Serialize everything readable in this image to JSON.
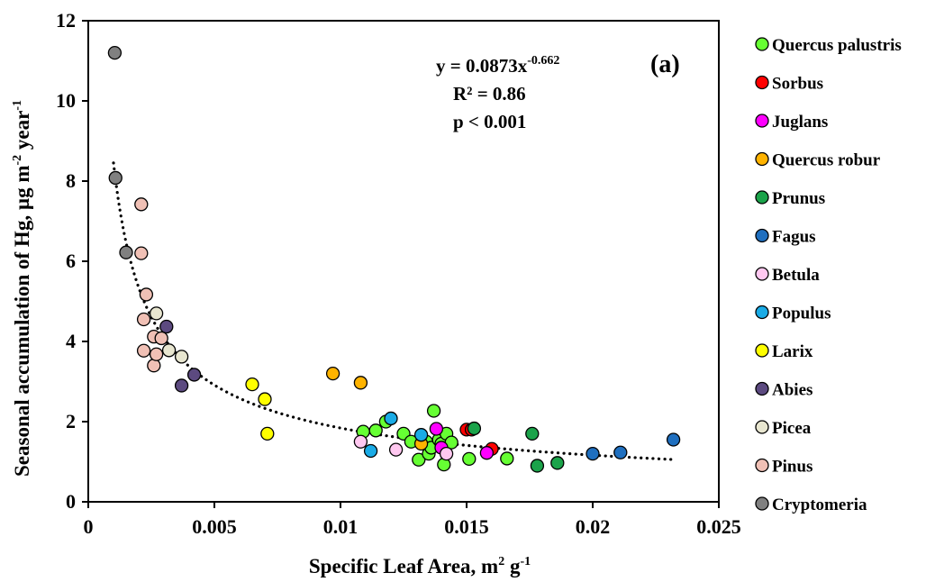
{
  "chart_data": {
    "type": "scatter",
    "title": "",
    "panel_label": "(a)",
    "xlabel": "Specific Leaf Area, m",
    "xlabel_sup": "2",
    "xlabel_mid": " g",
    "xlabel_sup2": "-1",
    "ylabel": "Seasonal accumulation of Hg, µg m",
    "ylabel_sup": "-2",
    "ylabel_mid": " year",
    "ylabel_sup2": "-1",
    "xlim": [
      0,
      0.025
    ],
    "ylim": [
      0,
      12
    ],
    "x_ticks": [
      0,
      0.005,
      0.01,
      0.015,
      0.02,
      0.025
    ],
    "x_tick_labels": [
      "0",
      "0.005",
      "0.01",
      "0.015",
      "0.02",
      "0.025"
    ],
    "y_ticks": [
      0,
      2,
      4,
      6,
      8,
      10,
      12
    ],
    "y_tick_labels": [
      "0",
      "2",
      "4",
      "6",
      "8",
      "10",
      "12"
    ],
    "grid": false,
    "legend_position": "right",
    "annotation": {
      "equation_base": "y = 0.0873x",
      "equation_exp": "-0.662",
      "r2": "R² = 0.86",
      "p": "p < 0.001"
    },
    "trendline": {
      "type": "power",
      "a": 0.0873,
      "b": -0.662,
      "x_range": [
        0.001,
        0.0232
      ],
      "style": "dotted"
    },
    "series": [
      {
        "name": "Quercus palustris",
        "color": "#66ff33",
        "points": [
          [
            0.0109,
            1.75
          ],
          [
            0.0114,
            1.78
          ],
          [
            0.0118,
            2.0
          ],
          [
            0.0125,
            1.7
          ],
          [
            0.0128,
            1.5
          ],
          [
            0.0131,
            1.05
          ],
          [
            0.0134,
            1.5
          ],
          [
            0.0135,
            1.2
          ],
          [
            0.0136,
            1.35
          ],
          [
            0.0139,
            1.55
          ],
          [
            0.014,
            1.45
          ],
          [
            0.0141,
            0.93
          ],
          [
            0.0142,
            1.7
          ],
          [
            0.0144,
            1.48
          ],
          [
            0.0137,
            2.27
          ],
          [
            0.0151,
            1.07
          ],
          [
            0.0166,
            1.08
          ]
        ]
      },
      {
        "name": "Sorbus",
        "color": "#ff0000",
        "points": [
          [
            0.015,
            1.8
          ],
          [
            0.0152,
            1.8
          ],
          [
            0.016,
            1.32
          ]
        ]
      },
      {
        "name": "Juglans",
        "color": "#ff00ff",
        "points": [
          [
            0.0138,
            1.82
          ],
          [
            0.014,
            1.35
          ],
          [
            0.0158,
            1.22
          ]
        ]
      },
      {
        "name": "Quercus robur",
        "color": "#ffb300",
        "points": [
          [
            0.0097,
            3.2
          ],
          [
            0.0108,
            2.97
          ],
          [
            0.0132,
            1.45
          ]
        ]
      },
      {
        "name": "Prunus",
        "color": "#1ba34a",
        "points": [
          [
            0.0153,
            1.83
          ],
          [
            0.0176,
            1.7
          ],
          [
            0.0178,
            0.9
          ],
          [
            0.0186,
            0.97
          ]
        ]
      },
      {
        "name": "Fagus",
        "color": "#1f6fbf",
        "points": [
          [
            0.02,
            1.2
          ],
          [
            0.0211,
            1.23
          ],
          [
            0.0232,
            1.55
          ]
        ]
      },
      {
        "name": "Betula",
        "color": "#ffc8f0",
        "points": [
          [
            0.0108,
            1.5
          ],
          [
            0.0122,
            1.3
          ],
          [
            0.0142,
            1.2
          ]
        ]
      },
      {
        "name": "Populus",
        "color": "#1aabe6",
        "points": [
          [
            0.012,
            2.08
          ],
          [
            0.0112,
            1.27
          ],
          [
            0.0132,
            1.67
          ]
        ]
      },
      {
        "name": "Larix",
        "color": "#ffff00",
        "points": [
          [
            0.0065,
            2.93
          ],
          [
            0.007,
            2.56
          ],
          [
            0.0071,
            1.7
          ]
        ]
      },
      {
        "name": "Abies",
        "color": "#5c4a80",
        "points": [
          [
            0.0031,
            4.37
          ],
          [
            0.0037,
            2.9
          ],
          [
            0.0042,
            3.17
          ]
        ]
      },
      {
        "name": "Picea",
        "color": "#e8e6d0",
        "points": [
          [
            0.0027,
            4.7
          ],
          [
            0.0032,
            3.78
          ],
          [
            0.0037,
            3.62
          ]
        ]
      },
      {
        "name": "Pinus",
        "color": "#f0c0b5",
        "points": [
          [
            0.0021,
            7.42
          ],
          [
            0.0021,
            6.2
          ],
          [
            0.0022,
            4.55
          ],
          [
            0.0023,
            5.17
          ],
          [
            0.0022,
            3.77
          ],
          [
            0.0026,
            4.12
          ],
          [
            0.0026,
            3.4
          ],
          [
            0.0027,
            3.68
          ],
          [
            0.0029,
            4.08
          ]
        ]
      },
      {
        "name": "Cryptomeria",
        "color": "#808080",
        "points": [
          [
            0.00105,
            11.2
          ],
          [
            0.00108,
            8.08
          ],
          [
            0.0015,
            6.22
          ]
        ]
      }
    ]
  }
}
